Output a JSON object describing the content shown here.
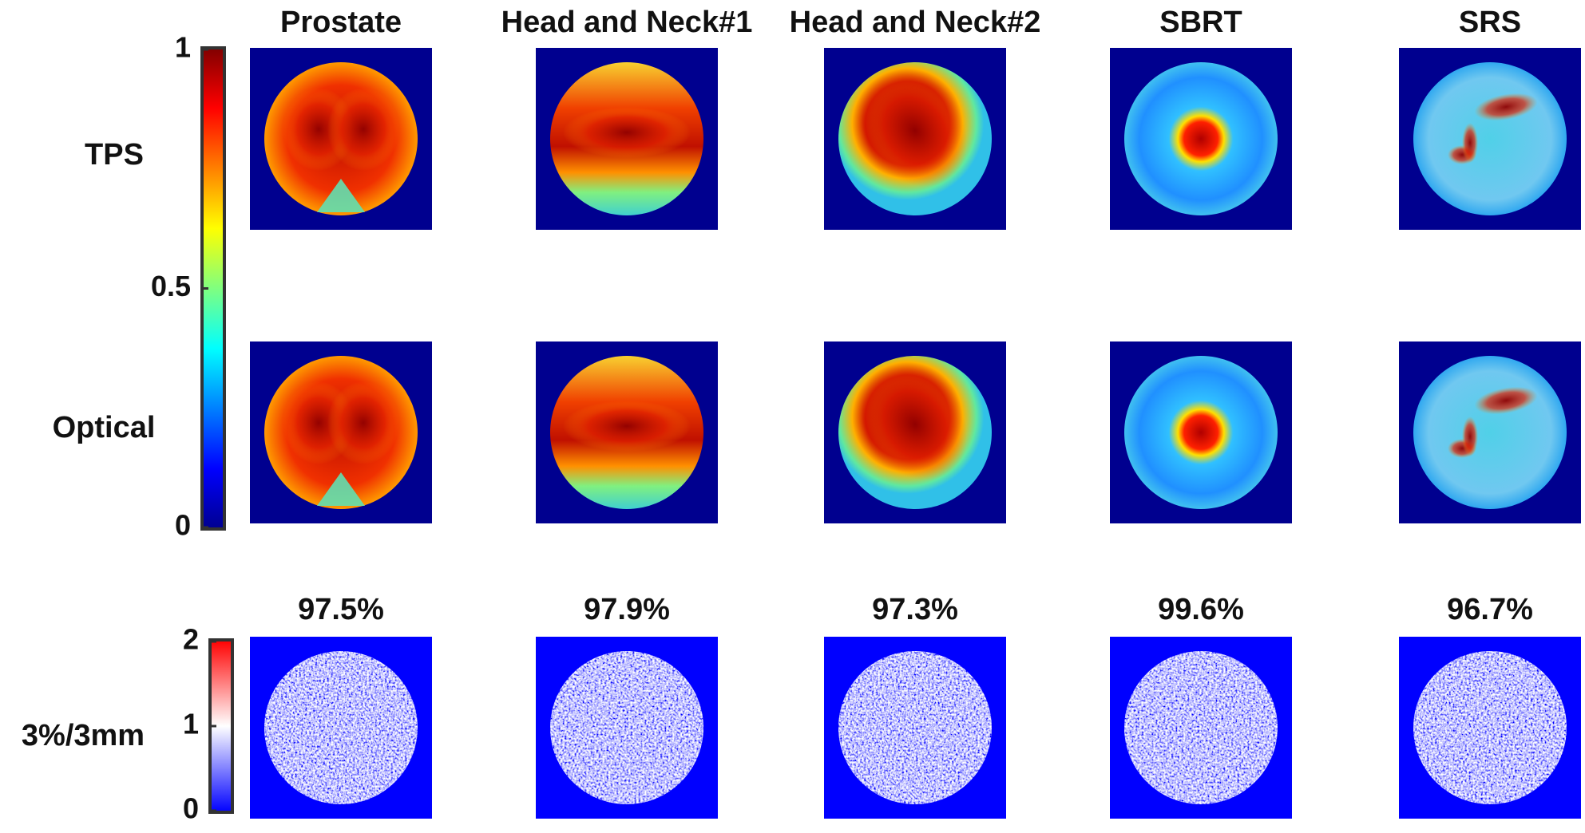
{
  "columns": [
    "Prostate",
    "Head and Neck#1",
    "Head and Neck#2",
    "SBRT",
    "SRS"
  ],
  "rows": [
    "TPS",
    "Optical",
    "3%/3mm"
  ],
  "dose_colorbar": {
    "ticks": [
      0,
      0.5,
      1
    ]
  },
  "gamma_colorbar": {
    "ticks": [
      0,
      1,
      2
    ]
  },
  "pass_rates": [
    "97.5%",
    "97.9%",
    "97.3%",
    "99.6%",
    "96.7%"
  ]
}
